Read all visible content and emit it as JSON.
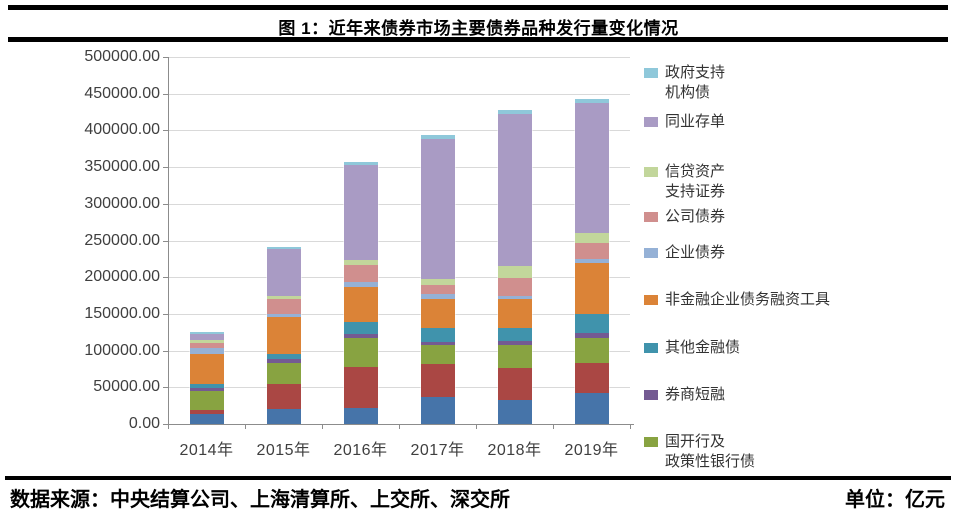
{
  "page": {
    "title": "图 1：近年来债券市场主要债券品种发行量变化情况",
    "footer": {
      "source": "数据来源：中央结算公司、上海清算所、上交所、深交所",
      "unit": "单位：亿元"
    }
  },
  "chart_data": {
    "type": "bar",
    "stacked": true,
    "title": "图 1：近年来债券市场主要债券品种发行量变化情况",
    "unit": "亿元",
    "categories": [
      "2014年",
      "2015年",
      "2016年",
      "2017年",
      "2018年",
      "2019年"
    ],
    "y_axis": {
      "min": 0,
      "max": 500000,
      "step": 50000,
      "tick_labels": [
        "0.00",
        "50000.00",
        "100000.00",
        "150000.00",
        "200000.00",
        "250000.00",
        "300000.00",
        "350000.00",
        "400000.00",
        "450000.00",
        "500000.00"
      ]
    },
    "grid": true,
    "legend_position": "right",
    "legend": [
      {
        "label_lines": [
          "政府支持",
          "机构债"
        ],
        "color": "#8FC8DA"
      },
      {
        "label_lines": [
          "同业存单"
        ],
        "color": "#A99BC4"
      },
      {
        "label_lines": [
          "信贷资产",
          "支持证券"
        ],
        "color": "#C2D69B"
      },
      {
        "label_lines": [
          "公司债券"
        ],
        "color": "#D08F8E"
      },
      {
        "label_lines": [
          "企业债券"
        ],
        "color": "#95B1D6"
      },
      {
        "label_lines": [
          "非金融企业债务融资工具"
        ],
        "color": "#DB8337"
      },
      {
        "label_lines": [
          "其他金融债"
        ],
        "color": "#4093AC"
      },
      {
        "label_lines": [
          "券商短融"
        ],
        "color": "#745A92"
      },
      {
        "label_lines": [
          "国开行及",
          "政策性银行债"
        ],
        "color": "#88A341"
      }
    ],
    "series_bottom_to_top": [
      {
        "name": "（图例未显示·深蓝）",
        "in_legend": false,
        "color": "#4674A9",
        "values": [
          14000,
          20500,
          21000,
          37000,
          33000,
          42500
        ]
      },
      {
        "name": "（图例未显示·暗红）",
        "in_legend": false,
        "color": "#AA4744",
        "values": [
          4800,
          34000,
          56000,
          45000,
          43000,
          41000
        ]
      },
      {
        "name": "国开行及政策性银行债",
        "in_legend": true,
        "color": "#88A341",
        "values": [
          26000,
          28500,
          39500,
          25000,
          31000,
          34000
        ]
      },
      {
        "name": "券商短融",
        "in_legend": true,
        "color": "#745A92",
        "values": [
          4800,
          5400,
          6000,
          4500,
          5500,
          6800
        ]
      },
      {
        "name": "其他金融债",
        "in_legend": true,
        "color": "#4093AC",
        "values": [
          5400,
          6800,
          16000,
          19500,
          18000,
          25000
        ]
      },
      {
        "name": "非金融企业债务融资工具",
        "in_legend": true,
        "color": "#DB8337",
        "values": [
          40200,
          50000,
          47500,
          39500,
          40000,
          70400
        ]
      },
      {
        "name": "企业债券",
        "in_legend": true,
        "color": "#95B1D6",
        "values": [
          8900,
          4500,
          7000,
          5900,
          4000,
          4500
        ]
      },
      {
        "name": "公司债券",
        "in_legend": true,
        "color": "#D08F8E",
        "values": [
          6800,
          20400,
          23500,
          12300,
          24500,
          22700
        ]
      },
      {
        "name": "信贷资产支持证券",
        "in_legend": true,
        "color": "#C2D69B",
        "values": [
          3400,
          4500,
          7000,
          9100,
          16000,
          13600
        ]
      },
      {
        "name": "同业存单",
        "in_legend": true,
        "color": "#A99BC4",
        "values": [
          8200,
          63500,
          129500,
          190400,
          207000,
          177100
        ]
      },
      {
        "name": "政府支持机构债",
        "in_legend": true,
        "color": "#8FC8DA",
        "values": [
          2700,
          2700,
          3700,
          5700,
          5900,
          4500
        ]
      }
    ]
  }
}
